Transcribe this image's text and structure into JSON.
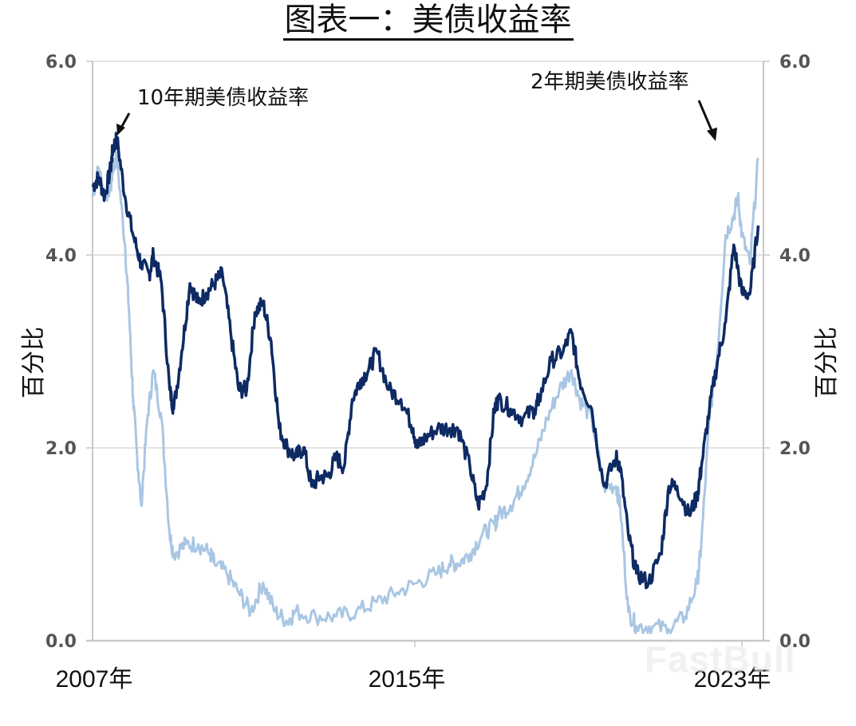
{
  "title": "图表一：美债收益率",
  "axes": {
    "y_left_label": "百分比",
    "y_right_label": "百分比",
    "y_ticks": [
      "6.0",
      "4.0",
      "2.0",
      "0.0"
    ],
    "x_ticks": [
      "2007年",
      "2015年",
      "2023年"
    ]
  },
  "annotations": {
    "ten_year": "10年期美债收益率",
    "two_year": "2年期美债收益率"
  },
  "watermark": "FastBull",
  "colors": {
    "ten_year": "#0d2a63",
    "two_year": "#a9c6e3",
    "grid": "#d9d9d9",
    "axis": "#c8c8c8"
  },
  "chart_data": {
    "type": "line",
    "title": "图表一：美债收益率",
    "xlabel": "",
    "ylabel": "百分比",
    "ylim": [
      0,
      6
    ],
    "xlim": [
      2007,
      2023.5
    ],
    "grid": true,
    "legend_position": "annotations with arrows (10年期 top-left, 2年期 top-right)",
    "x_tick_labels": [
      "2007年",
      "2015年",
      "2023年"
    ],
    "y_tick_labels": [
      "0.0",
      "2.0",
      "4.0",
      "6.0"
    ],
    "series": [
      {
        "name": "10年期美债收益率",
        "x": [
          2007.0,
          2007.15,
          2007.3,
          2007.45,
          2007.5,
          2007.6,
          2007.8,
          2008.0,
          2008.2,
          2008.4,
          2008.5,
          2008.7,
          2008.9,
          2009.0,
          2009.2,
          2009.4,
          2009.6,
          2009.8,
          2010.0,
          2010.2,
          2010.4,
          2010.6,
          2010.8,
          2011.0,
          2011.2,
          2011.4,
          2011.6,
          2011.8,
          2012.0,
          2012.2,
          2012.4,
          2012.6,
          2012.8,
          2013.0,
          2013.2,
          2013.4,
          2013.6,
          2013.8,
          2014.0,
          2014.3,
          2014.6,
          2014.9,
          2015.0,
          2015.2,
          2015.5,
          2015.8,
          2016.0,
          2016.3,
          2016.5,
          2016.7,
          2016.9,
          2017.0,
          2017.3,
          2017.6,
          2017.9,
          2018.0,
          2018.3,
          2018.6,
          2018.8,
          2019.0,
          2019.3,
          2019.6,
          2019.9,
          2020.0,
          2020.2,
          2020.4,
          2020.7,
          2021.0,
          2021.2,
          2021.4,
          2021.7,
          2021.9,
          2022.0,
          2022.2,
          2022.4,
          2022.6,
          2022.8,
          2023.0,
          2023.2,
          2023.4
        ],
        "values": [
          4.7,
          4.8,
          4.6,
          4.9,
          5.1,
          5.2,
          4.6,
          4.2,
          3.9,
          3.8,
          4.0,
          3.7,
          2.6,
          2.4,
          3.0,
          3.7,
          3.5,
          3.6,
          3.7,
          3.8,
          3.2,
          2.6,
          2.6,
          3.4,
          3.5,
          3.1,
          2.2,
          2.0,
          1.9,
          2.0,
          1.6,
          1.7,
          1.7,
          1.9,
          1.8,
          2.5,
          2.7,
          2.8,
          3.0,
          2.6,
          2.5,
          2.2,
          2.0,
          2.1,
          2.2,
          2.2,
          2.2,
          1.8,
          1.4,
          1.6,
          2.4,
          2.5,
          2.4,
          2.3,
          2.4,
          2.5,
          2.9,
          3.0,
          3.2,
          2.7,
          2.4,
          1.6,
          1.9,
          1.8,
          1.1,
          0.7,
          0.6,
          0.9,
          1.6,
          1.6,
          1.3,
          1.5,
          1.8,
          2.4,
          2.9,
          3.3,
          4.1,
          3.6,
          3.6,
          4.3
        ]
      },
      {
        "name": "2年期美债收益率",
        "x": [
          2007.0,
          2007.15,
          2007.3,
          2007.45,
          2007.5,
          2007.6,
          2007.8,
          2007.9,
          2008.0,
          2008.1,
          2008.2,
          2008.35,
          2008.5,
          2008.7,
          2008.9,
          2009.0,
          2009.3,
          2009.6,
          2009.9,
          2010.0,
          2010.3,
          2010.6,
          2010.9,
          2011.2,
          2011.5,
          2011.8,
          2012.0,
          2012.5,
          2013.0,
          2013.5,
          2014.0,
          2014.5,
          2015.0,
          2015.5,
          2015.8,
          2016.0,
          2016.3,
          2016.6,
          2016.9,
          2017.0,
          2017.3,
          2017.6,
          2017.9,
          2018.2,
          2018.5,
          2018.8,
          2019.0,
          2019.3,
          2019.6,
          2019.9,
          2020.0,
          2020.2,
          2020.4,
          2020.8,
          2021.2,
          2021.6,
          2021.9,
          2022.0,
          2022.2,
          2022.4,
          2022.6,
          2022.8,
          2022.9,
          2023.0,
          2023.2,
          2023.4
        ],
        "values": [
          4.6,
          4.9,
          4.6,
          4.7,
          4.9,
          5.0,
          4.1,
          3.4,
          2.5,
          1.9,
          1.4,
          2.3,
          2.8,
          2.3,
          1.1,
          0.9,
          1.0,
          1.0,
          0.9,
          0.8,
          0.7,
          0.5,
          0.3,
          0.6,
          0.3,
          0.2,
          0.3,
          0.25,
          0.25,
          0.3,
          0.4,
          0.5,
          0.6,
          0.7,
          0.8,
          0.8,
          0.9,
          1.1,
          1.2,
          1.3,
          1.4,
          1.6,
          1.9,
          2.3,
          2.6,
          2.8,
          2.5,
          2.3,
          1.6,
          1.6,
          1.4,
          0.3,
          0.15,
          0.15,
          0.12,
          0.25,
          0.6,
          1.0,
          2.3,
          3.0,
          4.2,
          4.4,
          4.6,
          4.2,
          3.9,
          5.0
        ]
      }
    ]
  }
}
